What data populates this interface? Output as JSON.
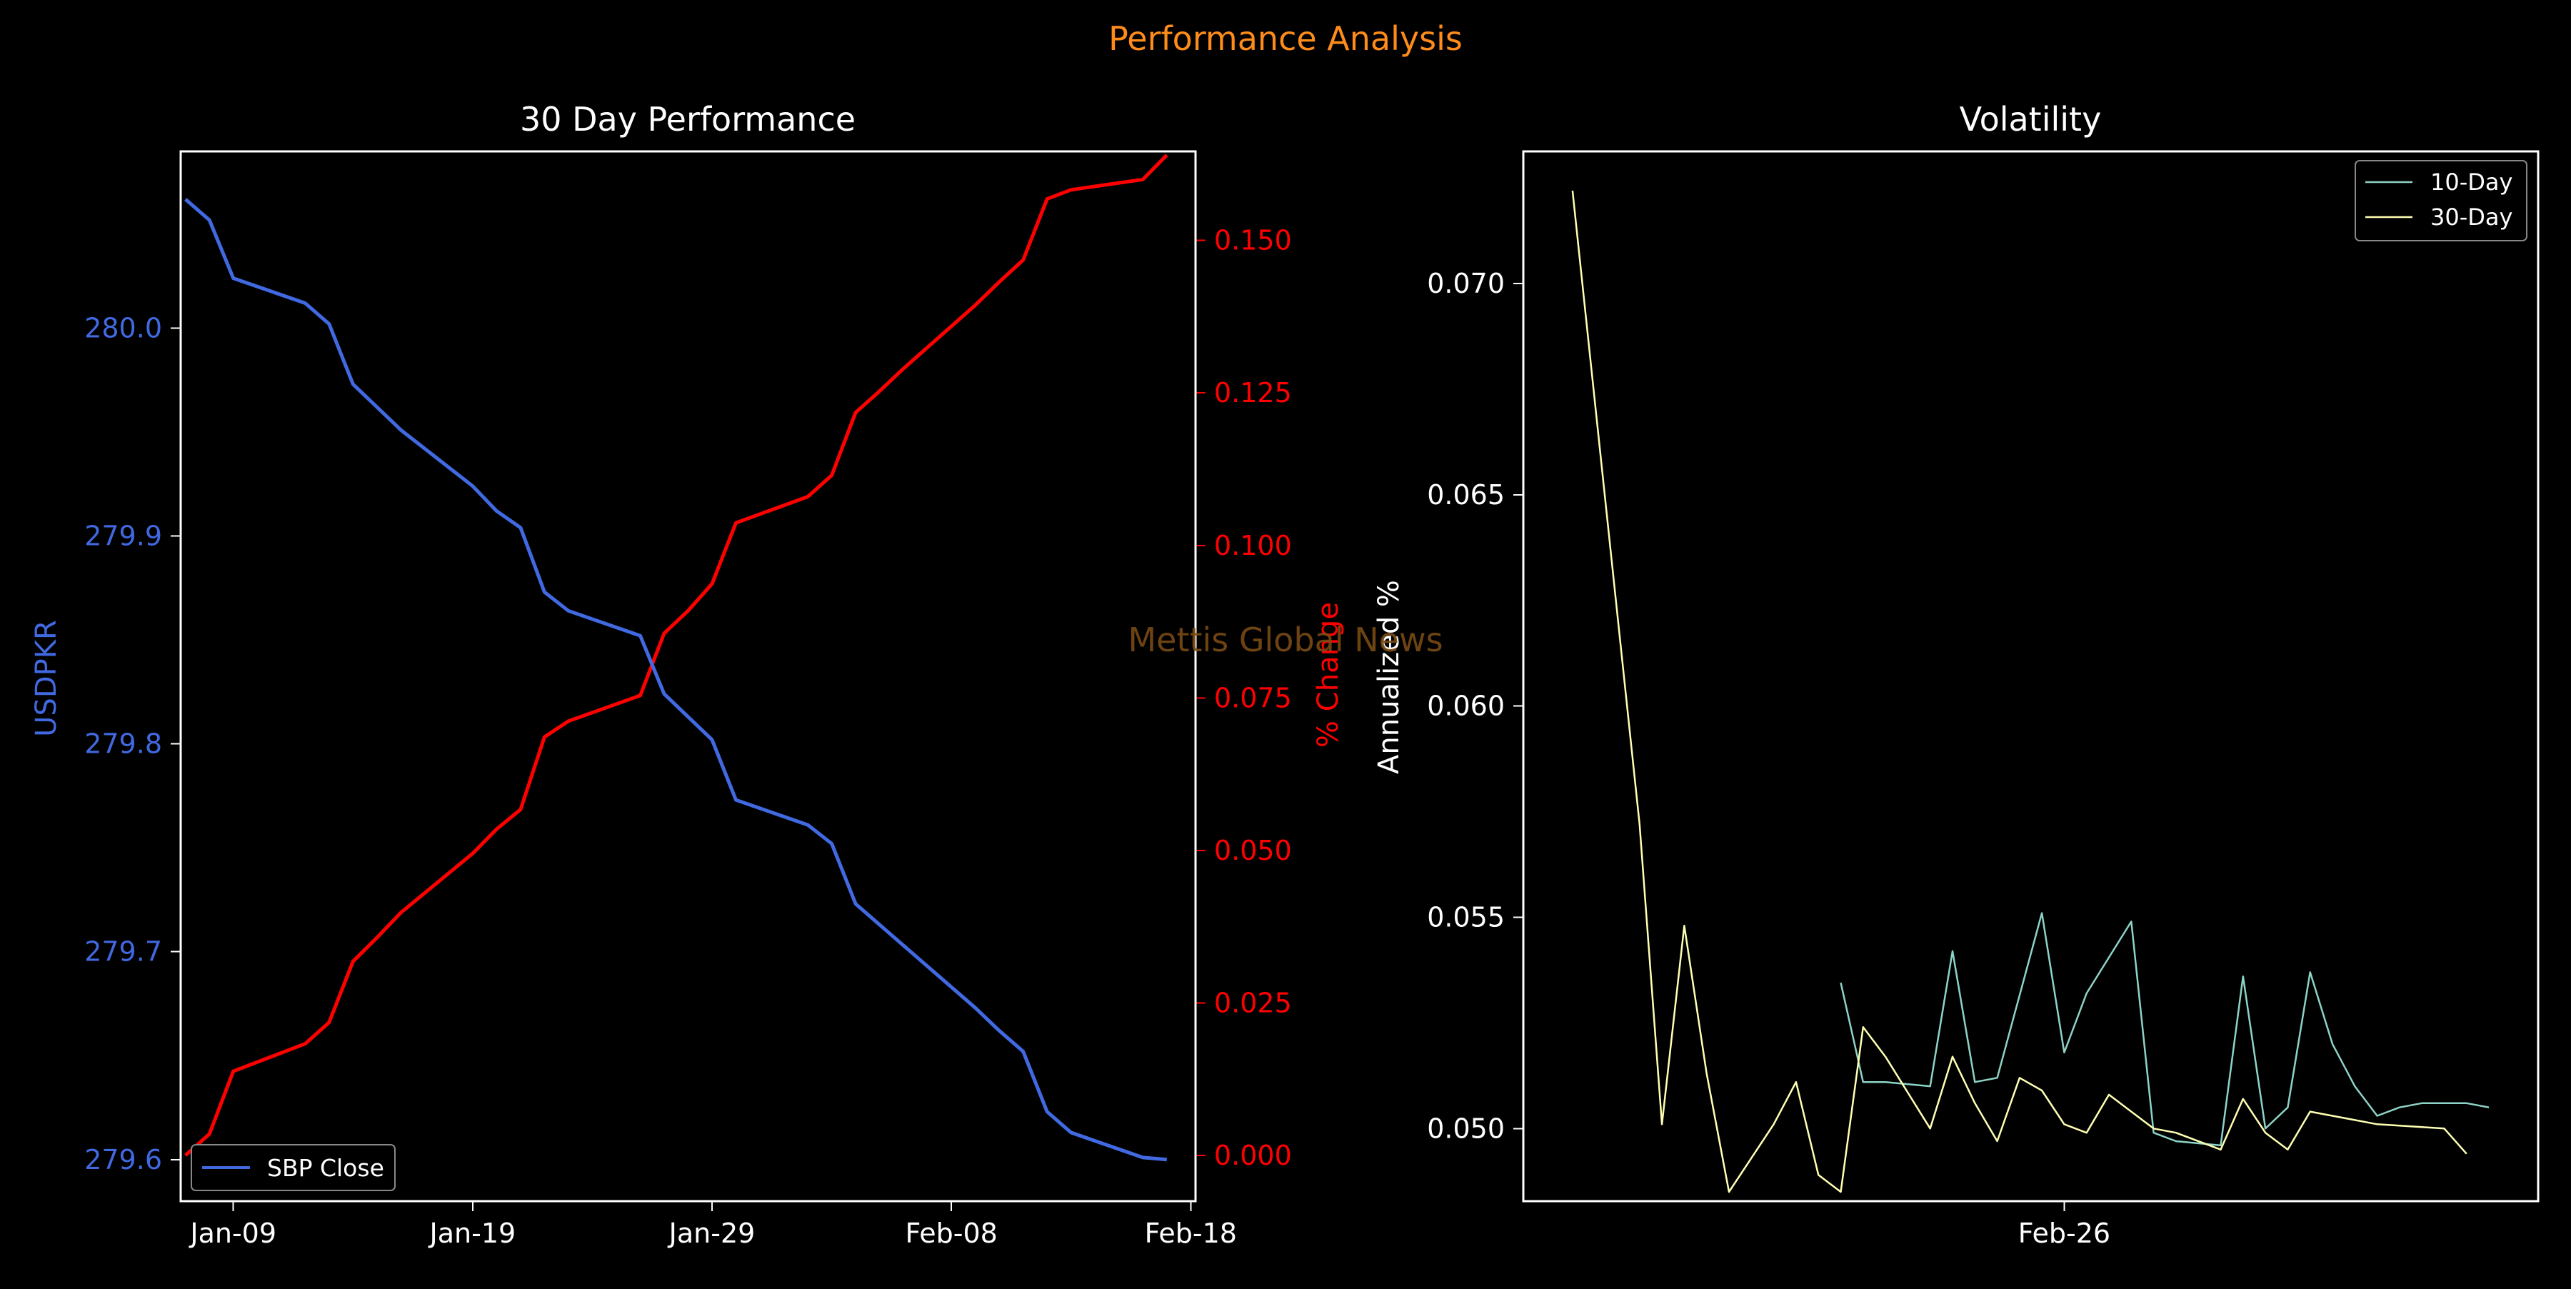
{
  "figure": {
    "suptitle": "Performance Analysis",
    "watermark": "Mettis Global News",
    "colors": {
      "background": "#000000",
      "suptitle": "#ff8c1a",
      "watermark": "#7a4a14",
      "axis": "#ffffff",
      "price": "#4169e1",
      "pct": "#ff0000",
      "vol10": "#8dd3c7",
      "vol30": "#ffffb3"
    }
  },
  "chart_data": [
    {
      "type": "line",
      "title": "30 Day Performance",
      "xlabel": "",
      "x_ticks": [
        "Jan-09",
        "Jan-19",
        "Jan-29",
        "Feb-08",
        "Feb-18"
      ],
      "x_tick_days": [
        8,
        18,
        28,
        38,
        48
      ],
      "xlim_days": [
        5.8,
        48.2
      ],
      "x_days": [
        6,
        7,
        8,
        11,
        12,
        13,
        14,
        15,
        18,
        19,
        20,
        21,
        22,
        25,
        26,
        27,
        28,
        29,
        32,
        33,
        34,
        35,
        36,
        39,
        40,
        41,
        42,
        43,
        46,
        47
      ],
      "y_left": {
        "label": "USDPKR",
        "lim": [
          279.58,
          280.085
        ],
        "ticks": [
          279.6,
          279.7,
          279.8,
          279.9,
          280.0
        ],
        "tick_labels": [
          "279.6",
          "279.7",
          "279.8",
          "279.9",
          "280.0"
        ]
      },
      "y_right": {
        "label": "% Change",
        "lim": [
          -0.0075,
          0.1646
        ],
        "ticks": [
          0.0,
          0.025,
          0.05,
          0.075,
          0.1,
          0.125,
          0.15
        ],
        "tick_labels": [
          "0.000",
          "0.025",
          "0.050",
          "0.075",
          "0.100",
          "0.125",
          "0.150"
        ]
      },
      "series": [
        {
          "name": "SBP Close",
          "axis": "left",
          "values": [
            280.062,
            280.052,
            280.024,
            280.012,
            280.002,
            279.973,
            279.962,
            279.951,
            279.924,
            279.912,
            279.904,
            279.873,
            279.864,
            279.852,
            279.824,
            279.813,
            279.802,
            279.773,
            279.761,
            279.752,
            279.723,
            279.713,
            279.703,
            279.673,
            279.662,
            279.652,
            279.623,
            279.613,
            279.601,
            279.6
          ]
        },
        {
          "axis": "right",
          "values": [
            0.0,
            0.0035,
            0.0138,
            0.0183,
            0.0218,
            0.0318,
            0.0357,
            0.0398,
            0.0495,
            0.0535,
            0.0567,
            0.0686,
            0.0712,
            0.0754,
            0.0856,
            0.0893,
            0.0937,
            0.1037,
            0.108,
            0.1115,
            0.1218,
            0.1253,
            0.129,
            0.1394,
            0.1432,
            0.1468,
            0.1568,
            0.1583,
            0.16,
            0.164
          ]
        }
      ],
      "legend": {
        "loc": "lower-left"
      }
    },
    {
      "type": "line",
      "title": "Volatility",
      "xlabel": "",
      "x_ticks": [
        "Feb-26"
      ],
      "x_tick_days": [
        56
      ],
      "xlim_days": [
        43.9,
        66.6
      ],
      "ylabel": "Annualized %",
      "ylim": [
        0.04828,
        0.07313
      ],
      "y_ticks": [
        0.05,
        0.055,
        0.06,
        0.065,
        0.07
      ],
      "y_tick_labels": [
        "0.050",
        "0.055",
        "0.060",
        "0.065",
        "0.070"
      ],
      "series": [
        {
          "name": "10-Day",
          "x_days": [
            51.0,
            51.5,
            52.0,
            53.0,
            53.5,
            54.0,
            54.5,
            55.5,
            56.0,
            56.5,
            57.5,
            58.0,
            58.5,
            59.5,
            60.0,
            60.5,
            61.0,
            61.5,
            62.0,
            62.5,
            63.0,
            63.5,
            64.0,
            64.5,
            65.0,
            65.5
          ],
          "values": [
            0.05345,
            0.0511,
            0.0511,
            0.051,
            0.0542,
            0.0511,
            0.0512,
            0.0551,
            0.0518,
            0.0532,
            0.0549,
            0.0499,
            0.0497,
            0.0496,
            0.0536,
            0.05,
            0.0505,
            0.0537,
            0.052,
            0.051,
            0.0503,
            0.0505,
            0.0506,
            0.0506,
            0.0506,
            0.0505
          ]
        },
        {
          "name": "30-Day",
          "x_days": [
            45.0,
            46.5,
            47.0,
            47.5,
            48.0,
            48.5,
            49.0,
            49.5,
            50.0,
            50.5,
            51.0,
            51.5,
            52.0,
            53.0,
            53.5,
            54.0,
            54.5,
            55.0,
            55.5,
            56.0,
            56.5,
            57.0,
            57.5,
            58.0,
            58.5,
            59.5,
            60.0,
            60.5,
            61.0,
            61.5,
            62.0,
            62.5,
            63.0,
            64.5,
            65.0
          ],
          "values": [
            0.0722,
            0.0572,
            0.0501,
            0.0548,
            0.0513,
            0.0485,
            0.0493,
            0.0501,
            0.0511,
            0.0489,
            0.0485,
            0.0524,
            0.0517,
            0.05,
            0.0517,
            0.0506,
            0.0497,
            0.0512,
            0.0509,
            0.0501,
            0.0499,
            0.0508,
            0.0504,
            0.05,
            0.0499,
            0.0495,
            0.0507,
            0.0499,
            0.0495,
            0.0504,
            0.0503,
            0.0502,
            0.0501,
            0.05,
            0.0494
          ]
        }
      ],
      "legend": {
        "loc": "upper-right"
      }
    }
  ]
}
